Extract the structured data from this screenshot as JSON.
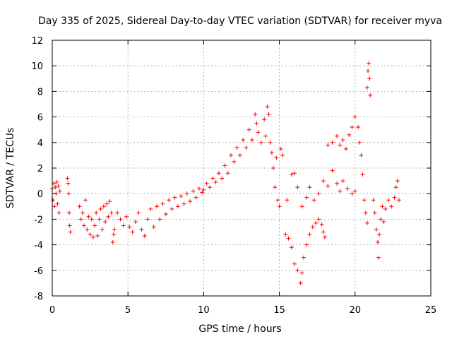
{
  "chart_data": {
    "type": "scatter",
    "title": "Day 335 of 2025, Sidereal Day-to-day VTEC variation (SDTVAR) for receiver myva",
    "xlabel": "GPS time / hours",
    "ylabel": "SDTVAR / TECUs",
    "xlim": [
      0,
      25
    ],
    "ylim": [
      -8,
      12
    ],
    "xticks": [
      0,
      5,
      10,
      15,
      20,
      25
    ],
    "yticks": [
      -8,
      -6,
      -4,
      -2,
      0,
      2,
      4,
      6,
      8,
      10,
      12
    ],
    "grid": true,
    "marker": "+",
    "color": "#ff0000",
    "series": [
      {
        "name": "SDTVAR",
        "points": [
          [
            0.0,
            0.4
          ],
          [
            0.05,
            -0.5
          ],
          [
            0.1,
            0.8
          ],
          [
            0.15,
            -1.0
          ],
          [
            0.2,
            0.5
          ],
          [
            0.25,
            0.0
          ],
          [
            0.3,
            0.9
          ],
          [
            0.35,
            -0.8
          ],
          [
            0.4,
            0.6
          ],
          [
            0.45,
            -1.5
          ],
          [
            0.5,
            0.2
          ],
          [
            1.0,
            1.2
          ],
          [
            1.05,
            0.8
          ],
          [
            1.1,
            0.0
          ],
          [
            1.12,
            -1.5
          ],
          [
            1.15,
            -2.5
          ],
          [
            1.2,
            -3.0
          ],
          [
            1.8,
            -1.0
          ],
          [
            1.9,
            -2.0
          ],
          [
            2.0,
            -1.5
          ],
          [
            2.1,
            -2.5
          ],
          [
            2.2,
            -0.5
          ],
          [
            2.3,
            -2.8
          ],
          [
            2.4,
            -1.8
          ],
          [
            2.5,
            -3.2
          ],
          [
            2.6,
            -2.0
          ],
          [
            2.7,
            -3.4
          ],
          [
            2.8,
            -2.5
          ],
          [
            2.9,
            -1.5
          ],
          [
            3.0,
            -3.3
          ],
          [
            3.1,
            -2.0
          ],
          [
            3.2,
            -1.2
          ],
          [
            3.3,
            -2.8
          ],
          [
            3.4,
            -1.0
          ],
          [
            3.5,
            -2.2
          ],
          [
            3.6,
            -0.8
          ],
          [
            3.7,
            -1.8
          ],
          [
            3.8,
            -0.6
          ],
          [
            3.9,
            -1.5
          ],
          [
            4.0,
            -3.8
          ],
          [
            4.05,
            -3.2
          ],
          [
            4.1,
            -2.8
          ],
          [
            4.3,
            -1.5
          ],
          [
            4.5,
            -2.0
          ],
          [
            4.7,
            -2.5
          ],
          [
            4.9,
            -1.8
          ],
          [
            5.1,
            -2.6
          ],
          [
            5.3,
            -3.0
          ],
          [
            5.5,
            -2.2
          ],
          [
            5.7,
            -1.5
          ],
          [
            5.9,
            -2.8
          ],
          [
            6.1,
            -3.3
          ],
          [
            6.3,
            -2.0
          ],
          [
            6.5,
            -1.2
          ],
          [
            6.7,
            -2.6
          ],
          [
            6.9,
            -1.0
          ],
          [
            7.1,
            -2.0
          ],
          [
            7.3,
            -0.8
          ],
          [
            7.5,
            -1.6
          ],
          [
            7.7,
            -0.5
          ],
          [
            7.9,
            -1.2
          ],
          [
            8.1,
            -0.3
          ],
          [
            8.3,
            -1.0
          ],
          [
            8.5,
            -0.2
          ],
          [
            8.7,
            -0.8
          ],
          [
            8.9,
            0.0
          ],
          [
            9.1,
            -0.6
          ],
          [
            9.3,
            0.2
          ],
          [
            9.5,
            -0.3
          ],
          [
            9.7,
            0.4
          ],
          [
            9.9,
            0.1
          ],
          [
            10.0,
            0.3
          ],
          [
            10.2,
            0.8
          ],
          [
            10.4,
            0.5
          ],
          [
            10.6,
            1.2
          ],
          [
            10.8,
            0.9
          ],
          [
            11.0,
            1.6
          ],
          [
            11.2,
            1.2
          ],
          [
            11.4,
            2.2
          ],
          [
            11.6,
            1.6
          ],
          [
            11.8,
            3.0
          ],
          [
            12.0,
            2.5
          ],
          [
            12.2,
            3.6
          ],
          [
            12.4,
            3.0
          ],
          [
            12.6,
            4.2
          ],
          [
            12.8,
            3.6
          ],
          [
            13.0,
            5.0
          ],
          [
            13.2,
            4.2
          ],
          [
            13.4,
            6.2
          ],
          [
            13.5,
            5.5
          ],
          [
            13.6,
            4.8
          ],
          [
            13.8,
            4.0
          ],
          [
            14.0,
            5.8
          ],
          [
            14.1,
            4.5
          ],
          [
            14.2,
            6.8
          ],
          [
            14.3,
            6.2
          ],
          [
            14.4,
            4.0
          ],
          [
            14.5,
            3.2
          ],
          [
            14.6,
            2.0
          ],
          [
            14.7,
            0.5
          ],
          [
            14.8,
            2.8
          ],
          [
            14.9,
            -0.5
          ],
          [
            15.0,
            -1.0
          ],
          [
            15.1,
            3.5
          ],
          [
            15.2,
            3.0
          ],
          [
            15.4,
            -3.2
          ],
          [
            15.6,
            -3.5
          ],
          [
            15.8,
            -4.2
          ],
          [
            16.0,
            -5.5
          ],
          [
            16.2,
            -6.0
          ],
          [
            16.4,
            -7.0
          ],
          [
            16.5,
            -6.2
          ],
          [
            16.6,
            -5.0
          ],
          [
            16.8,
            -4.0
          ],
          [
            17.0,
            -3.2
          ],
          [
            17.2,
            -2.6
          ],
          [
            17.4,
            -2.3
          ],
          [
            17.6,
            -2.0
          ],
          [
            17.8,
            -2.4
          ],
          [
            17.9,
            -3.0
          ],
          [
            18.0,
            -3.4
          ],
          [
            15.5,
            -0.5
          ],
          [
            15.8,
            1.5
          ],
          [
            16.0,
            1.6
          ],
          [
            16.2,
            0.5
          ],
          [
            16.5,
            -1.0
          ],
          [
            16.8,
            -0.3
          ],
          [
            17.0,
            0.5
          ],
          [
            17.3,
            -0.5
          ],
          [
            17.6,
            0.0
          ],
          [
            17.9,
            1.0
          ],
          [
            18.2,
            0.6
          ],
          [
            18.5,
            1.8
          ],
          [
            18.8,
            0.8
          ],
          [
            19.0,
            0.2
          ],
          [
            19.2,
            1.0
          ],
          [
            19.5,
            0.4
          ],
          [
            19.8,
            0.0
          ],
          [
            20.0,
            0.2
          ],
          [
            18.2,
            3.8
          ],
          [
            18.5,
            4.0
          ],
          [
            18.8,
            4.5
          ],
          [
            19.0,
            3.8
          ],
          [
            19.2,
            4.2
          ],
          [
            19.4,
            3.5
          ],
          [
            19.6,
            4.6
          ],
          [
            19.8,
            5.2
          ],
          [
            20.0,
            6.0
          ],
          [
            20.2,
            5.2
          ],
          [
            20.3,
            4.0
          ],
          [
            20.4,
            3.0
          ],
          [
            20.5,
            1.5
          ],
          [
            20.6,
            -0.5
          ],
          [
            20.7,
            -1.5
          ],
          [
            20.8,
            -2.3
          ],
          [
            20.8,
            8.3
          ],
          [
            20.85,
            9.6
          ],
          [
            20.9,
            10.2
          ],
          [
            20.95,
            9.0
          ],
          [
            21.0,
            7.7
          ],
          [
            21.2,
            -0.5
          ],
          [
            21.3,
            -1.5
          ],
          [
            21.4,
            -2.8
          ],
          [
            21.5,
            -3.8
          ],
          [
            21.55,
            -5.0
          ],
          [
            21.6,
            -3.2
          ],
          [
            21.7,
            -2.0
          ],
          [
            21.8,
            -1.0
          ],
          [
            21.9,
            -2.2
          ],
          [
            22.0,
            -1.2
          ],
          [
            22.2,
            -0.5
          ],
          [
            22.4,
            -1.0
          ],
          [
            22.6,
            -0.3
          ],
          [
            22.7,
            0.5
          ],
          [
            22.8,
            1.0
          ],
          [
            22.9,
            -0.5
          ]
        ]
      }
    ]
  }
}
